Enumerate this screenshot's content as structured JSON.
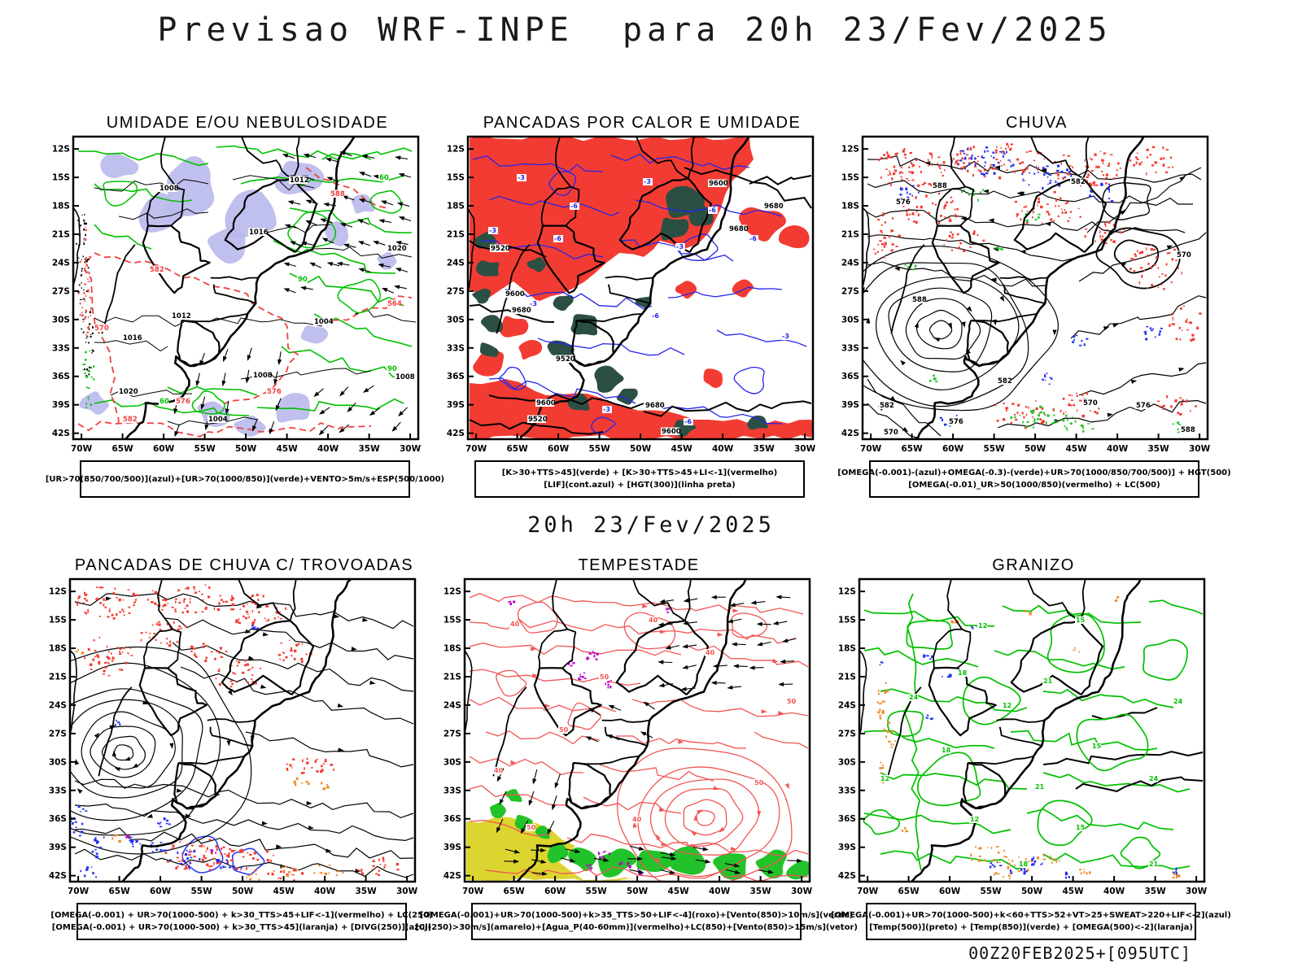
{
  "page": {
    "title": "Previsao WRF-INPE  para 20h 23/Fev/2025",
    "center_caption": "20h 23/Fev/2025",
    "footer_timestamp": "00Z20FEB2025+[095UTC]"
  },
  "axes": {
    "lat_labels": [
      "12S",
      "15S",
      "18S",
      "21S",
      "24S",
      "27S",
      "30S",
      "33S",
      "36S",
      "39S",
      "42S"
    ],
    "lon_labels": [
      "70W",
      "65W",
      "60W",
      "55W",
      "50W",
      "45W",
      "40W",
      "35W",
      "30W"
    ]
  },
  "colors": {
    "red_fill": "#f23c33",
    "dark_green_fill": "#2c4f44",
    "lavender_fill": "#b9b9ec",
    "green_contour": "#00c000",
    "green_fill": "#22c32a",
    "blue_contour": "#2424ec",
    "red_contour": "#f04040",
    "red_line": "#f25454",
    "yellow_fill": "#ddd52f",
    "orange_fill": "#ee8d2d",
    "purple_fill": "#b800c4",
    "blue_speck": "#2233ee",
    "black": "#000000"
  },
  "panels": [
    {
      "id": "umidade",
      "title": "UMIDADE E/OU NEBULOSIDADE",
      "legend_lines": [
        "[UR>70(850/700/500)](azul)+[UR>70(1000/850)](verde)+VENTO>5m/s+ESP(500/1000)"
      ],
      "contour_labels": {
        "black": [
          "1008",
          "1012",
          "1016",
          "1020",
          "1004"
        ],
        "red": [
          "582",
          "576",
          "570",
          "588",
          "564"
        ],
        "green": [
          "60",
          "90"
        ]
      }
    },
    {
      "id": "pancadas-calor",
      "title": "PANCADAS POR CALOR E UMIDADE",
      "legend_lines": [
        "[K>30+TTS>45](verde) + [K>30+TTS>45+LI<-1](vermelho)",
        "[LIF](cont.azul) + [HGT(300)](linha preta)"
      ],
      "contour_labels": {
        "black": [
          "9600",
          "9680",
          "9520"
        ],
        "blue": [
          "-3",
          "-6"
        ]
      }
    },
    {
      "id": "chuva",
      "title": "CHUVA",
      "legend_lines": [
        "[OMEGA(-0.001)-(azul)+OMEGA(-0.3)-(verde)+UR>70(1000/850/700/500)] + HGT(500)",
        "[OMEGA(-0.01)_UR>50(1000/850)(vermelho) + LC(500)"
      ],
      "contour_labels": {
        "black": [
          "588",
          "582",
          "576",
          "570"
        ]
      }
    },
    {
      "id": "trovoadas",
      "title": "PANCADAS DE CHUVA C/ TROVOADAS",
      "legend_lines": [
        "[OMEGA(-0.001) + UR>70(1000-500) + k>30_TTS>45+LIF<-1](vermelho) + LC(250)",
        "[OMEGA(-0.001) + UR>70(1000-500) + k>30_TTS>45](laranja) + [DIVG(250)](azul)"
      ],
      "contour_labels": {}
    },
    {
      "id": "tempestade",
      "title": "TEMPESTADE",
      "legend_lines": [
        "[OMEGA(-0.001)+UR>70(1000-500)+k>35_TTS>50+LIF<-4](roxo)+[Vento(850)>10m/s](verde)",
        "[CJ(250)>30m/s](amarelo)+[Agua_P(40-60mm)](vermelho)+LC(850)+[Vento(850)>15m/s](vetor)"
      ],
      "contour_labels": {
        "red": [
          "40",
          "50"
        ]
      }
    },
    {
      "id": "granizo",
      "title": "GRANIZO",
      "legend_lines": [
        "[OMEGA(-0.001)+UR>70(1000-500)+k<60+TTS>52+VT>25+SWEAT>220+LIF<-2](azul)",
        "[Temp(500)](preto) + [Temp(850)](verde) + [OMEGA(500)<-2](laranja)"
      ],
      "contour_labels": {
        "green": [
          "12",
          "15",
          "18",
          "21",
          "24"
        ]
      }
    }
  ]
}
